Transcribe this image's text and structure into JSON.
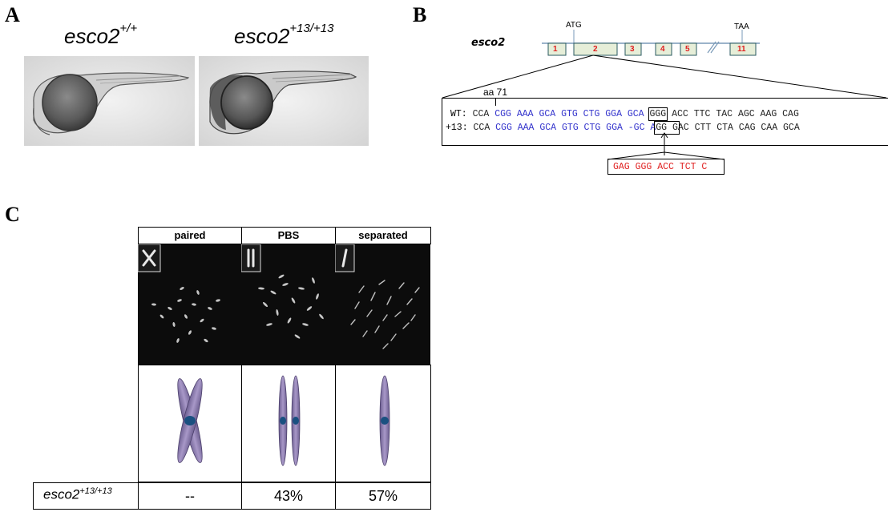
{
  "panels": {
    "a": {
      "letter": "A",
      "genotype_wt": {
        "base": "esco2",
        "sup": "+/+"
      },
      "genotype_mut": {
        "base": "esco2",
        "sup": "+13/+13"
      }
    },
    "b": {
      "letter": "B",
      "gene": "esco2",
      "start_codon": "ATG",
      "stop_codon": "TAA",
      "exons": [
        "1",
        "2",
        "3",
        "4",
        "5",
        "11"
      ],
      "aa_label": "aa 71",
      "wt_prefix": "WT:",
      "wt_start": "CCA",
      "wt_blue": "CGG AAA GCA GTG CTG GGA GCA",
      "wt_boxed": "GGG",
      "wt_end": "ACC TTC TAC AGC AAG CAG",
      "mut_prefix": "+13:",
      "mut_start": "CCA",
      "mut_blue": "CGG AAA GCA GTG CTG GGA -GC A",
      "mut_boxed": "GG G",
      "mut_end": "AC CTT CTA CAG CAA GCA",
      "insertion": "GAG GGG ACC TCT C"
    },
    "c": {
      "letter": "C",
      "headers": [
        "paired",
        "PBS",
        "separated"
      ],
      "row_label": {
        "base": "esco2",
        "sup": "+13/+13"
      },
      "values": [
        "--",
        "43%",
        "57%"
      ]
    }
  },
  "colors": {
    "seq_blue": "#3333cc",
    "insertion_red": "#e02020",
    "exon_fill": "#e6eed8",
    "chromosome": "#8878a8",
    "centromere": "#1a5080"
  }
}
